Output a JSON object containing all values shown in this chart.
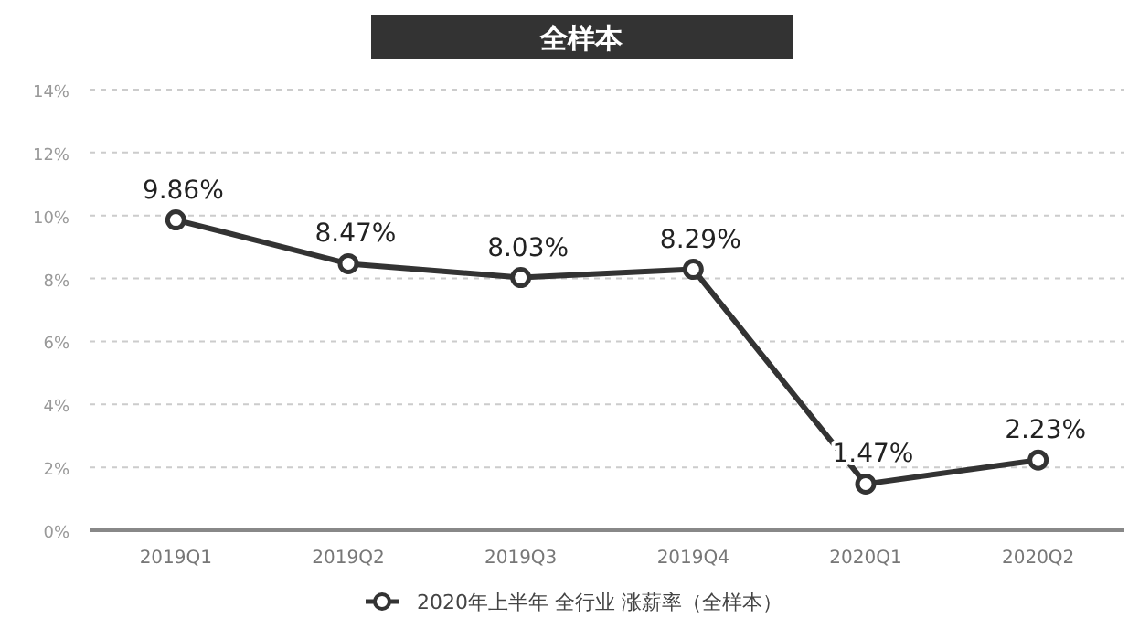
{
  "chart_data": {
    "type": "line",
    "title": "全样本",
    "categories": [
      "2019Q1",
      "2019Q2",
      "2019Q3",
      "2019Q4",
      "2020Q1",
      "2020Q2"
    ],
    "series": [
      {
        "name": "2020年上半年 全行业 涨薪率（全样本）",
        "color": "#333333",
        "values": [
          9.86,
          8.47,
          8.03,
          8.29,
          1.47,
          2.23
        ],
        "value_labels": [
          "9.86%",
          "8.47%",
          "8.03%",
          "8.29%",
          "1.47%",
          "2.23%"
        ]
      }
    ],
    "ylim": [
      0,
      14
    ],
    "yticks": [
      {
        "value": 0,
        "label": "0%"
      },
      {
        "value": 2,
        "label": "2%"
      },
      {
        "value": 4,
        "label": "4%"
      },
      {
        "value": 6,
        "label": "6%"
      },
      {
        "value": 8,
        "label": "8%"
      },
      {
        "value": 10,
        "label": "10%"
      },
      {
        "value": 12,
        "label": "12%"
      },
      {
        "value": 14,
        "label": "14%"
      }
    ],
    "grid": "y",
    "legend": "bottom",
    "marker": "circle",
    "line_style": "solid"
  }
}
